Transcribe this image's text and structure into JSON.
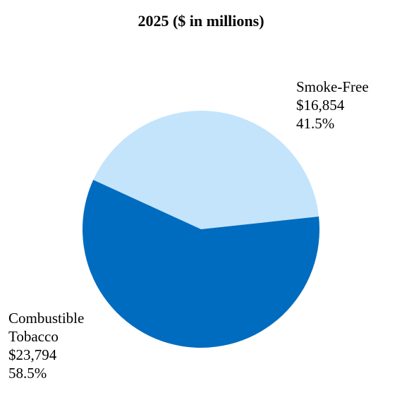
{
  "chart_data": {
    "type": "pie",
    "title": "2025 ($ in millions)",
    "slices": [
      {
        "name": "Smoke-Free",
        "value": 16854,
        "value_label": "$16,854",
        "percent_label": "41.5%",
        "color": "#c3e4fb"
      },
      {
        "name_lines": [
          "Combustible",
          "Tobacco"
        ],
        "value": 23794,
        "value_label": "$23,794",
        "percent_label": "58.5%",
        "color": "#006cbf"
      }
    ]
  }
}
